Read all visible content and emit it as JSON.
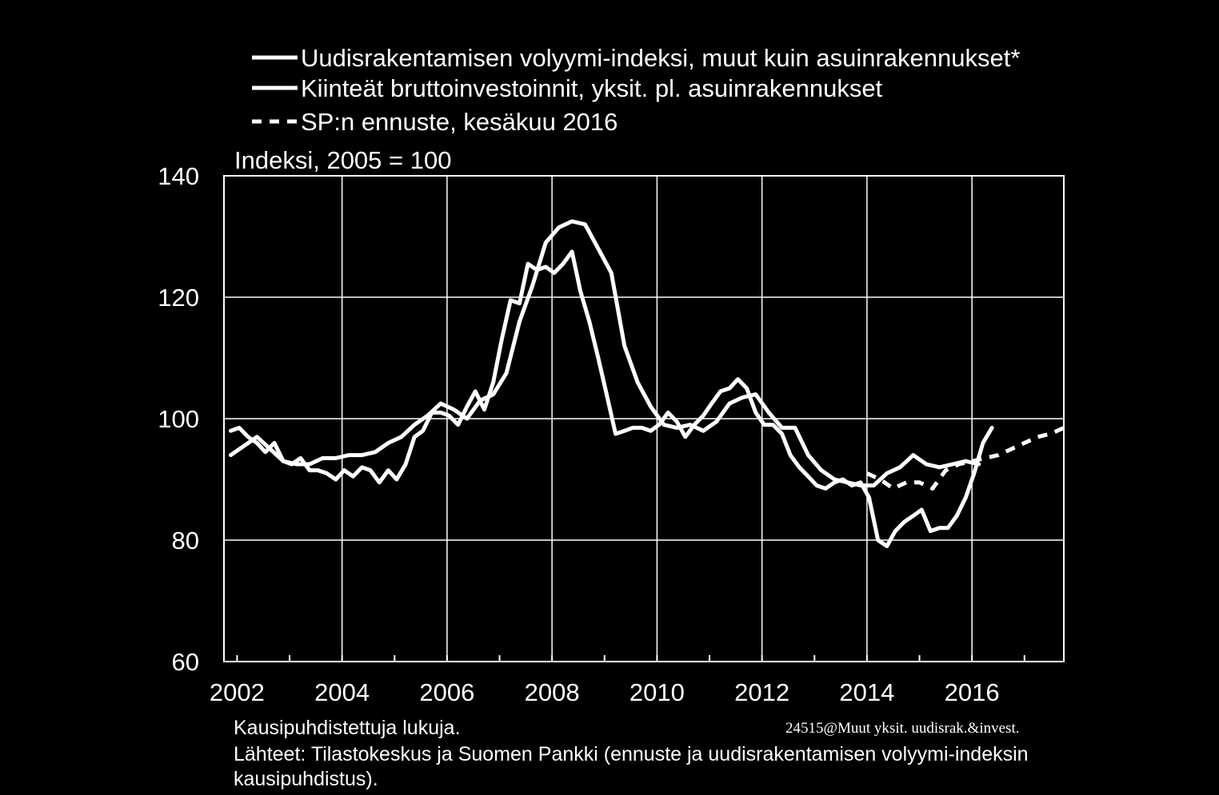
{
  "chart_data": {
    "type": "line",
    "unit_label": "Indeksi, 2005 = 100",
    "xlim": [
      2001.75,
      2017.75
    ],
    "ylim": [
      60,
      140
    ],
    "y_ticks": [
      "60",
      "80",
      "100",
      "120",
      "140"
    ],
    "x_ticks": [
      "2002",
      "2004",
      "2006",
      "2008",
      "2010",
      "2012",
      "2014",
      "2016"
    ],
    "grid": true,
    "legend_position": "top",
    "series": [
      {
        "name": "Uudisrakentamisen volyymi-indeksi, muut kuin asuinrakennukset*",
        "style": "solid",
        "color": "#ffffff",
        "x": [
          2001.88,
          2002.04,
          2002.21,
          2002.38,
          2002.54,
          2002.71,
          2002.88,
          2003.04,
          2003.21,
          2003.38,
          2003.54,
          2003.71,
          2003.88,
          2004.04,
          2004.21,
          2004.38,
          2004.54,
          2004.71,
          2004.88,
          2005.04,
          2005.21,
          2005.38,
          2005.54,
          2005.71,
          2005.88,
          2006.04,
          2006.21,
          2006.38,
          2006.54,
          2006.71,
          2006.88,
          2007.04,
          2007.21,
          2007.38,
          2007.54,
          2007.71,
          2007.88,
          2008.04,
          2008.21,
          2008.38,
          2008.54,
          2008.71,
          2008.88,
          2009.04,
          2009.21,
          2009.38,
          2009.54,
          2009.71,
          2009.88,
          2010.04,
          2010.21,
          2010.38,
          2010.54,
          2010.71,
          2010.88,
          2011.04,
          2011.21,
          2011.38,
          2011.54,
          2011.71,
          2011.88,
          2012.04,
          2012.21,
          2012.38,
          2012.54,
          2012.71,
          2012.88,
          2013.04,
          2013.21,
          2013.38,
          2013.54,
          2013.71,
          2013.88,
          2014.04,
          2014.21,
          2014.38,
          2014.54,
          2014.71,
          2014.88,
          2015.04,
          2015.21,
          2015.38,
          2015.54,
          2015.71,
          2015.88,
          2016.04,
          2016.21,
          2016.38
        ],
        "values": [
          98.0,
          98.5,
          97.0,
          96.0,
          94.5,
          96.0,
          93.0,
          92.5,
          93.5,
          91.5,
          91.5,
          91.0,
          90.0,
          91.5,
          90.5,
          92.0,
          91.5,
          89.5,
          91.5,
          90.0,
          92.5,
          97.0,
          98.0,
          101.0,
          101.0,
          100.5,
          99.0,
          102.0,
          104.5,
          101.5,
          106.0,
          113.0,
          119.5,
          119.0,
          125.5,
          124.5,
          125.0,
          124.0,
          125.5,
          127.5,
          121.0,
          116.0,
          110.0,
          104.0,
          97.5,
          98.0,
          98.5,
          98.5,
          98.0,
          99.0,
          101.0,
          99.5,
          97.0,
          99.0,
          100.5,
          102.5,
          104.5,
          105.0,
          106.5,
          105.0,
          101.0,
          99.0,
          99.0,
          97.5,
          94.0,
          92.0,
          90.5,
          89.0,
          88.5,
          89.5,
          90.0,
          89.0,
          89.5,
          87.0,
          80.0,
          79.0,
          81.5,
          83.0,
          84.0,
          85.0,
          81.5,
          82.0,
          82.0,
          84.0,
          87.0,
          91.0,
          96.0,
          98.5
        ]
      },
      {
        "name": "Kiinteät bruttoinvestoinnit, yksit. pl. asuinrakennukset",
        "style": "solid",
        "color": "#ffffff",
        "x": [
          2001.88,
          2002.13,
          2002.38,
          2002.63,
          2002.88,
          2003.13,
          2003.38,
          2003.63,
          2003.88,
          2004.13,
          2004.38,
          2004.63,
          2004.88,
          2005.13,
          2005.38,
          2005.63,
          2005.88,
          2006.13,
          2006.38,
          2006.63,
          2006.88,
          2007.13,
          2007.38,
          2007.63,
          2007.88,
          2008.13,
          2008.38,
          2008.63,
          2008.88,
          2009.13,
          2009.38,
          2009.63,
          2009.88,
          2010.13,
          2010.38,
          2010.63,
          2010.88,
          2011.13,
          2011.38,
          2011.63,
          2011.88,
          2012.13,
          2012.38,
          2012.63,
          2012.88,
          2013.13,
          2013.38,
          2013.63,
          2013.88,
          2014.13,
          2014.38,
          2014.63,
          2014.88,
          2015.13,
          2015.38,
          2015.63,
          2015.88,
          2016.13
        ],
        "values": [
          94.0,
          95.5,
          97.0,
          95.0,
          93.0,
          92.5,
          92.5,
          93.5,
          93.5,
          94.0,
          94.0,
          94.5,
          96.0,
          97.0,
          99.0,
          100.5,
          102.5,
          101.5,
          100.0,
          103.0,
          104.0,
          107.5,
          116.0,
          122.0,
          129.0,
          131.5,
          132.5,
          132.0,
          128.0,
          124.0,
          112.0,
          106.0,
          102.0,
          99.0,
          98.5,
          99.0,
          98.0,
          99.5,
          102.5,
          103.5,
          104.0,
          101.0,
          98.5,
          98.5,
          94.0,
          91.5,
          90.0,
          89.5,
          89.0,
          89.0,
          91.0,
          92.0,
          94.0,
          92.5,
          92.0,
          92.5,
          93.0,
          92.5
        ]
      },
      {
        "name": "SP:n ennuste, kesäkuu 2016",
        "style": "dashed",
        "color": "#ffffff",
        "x": [
          2014.0,
          2014.25,
          2014.5,
          2014.75,
          2015.0,
          2015.25,
          2015.5,
          2015.75,
          2016.0,
          2016.25,
          2016.5,
          2016.75,
          2017.0,
          2017.25,
          2017.5,
          2017.75
        ],
        "values": [
          91.0,
          90.0,
          88.5,
          89.5,
          89.5,
          88.5,
          91.5,
          92.5,
          93.0,
          93.5,
          94.0,
          95.0,
          96.0,
          97.0,
          97.5,
          98.5
        ]
      }
    ]
  },
  "notes": {
    "line1": "Kausipuhdistettuja lukuja.",
    "line2": "Lähteet: Tilastokeskus ja Suomen Pankki (ennuste ja uudisrakentamisen volyymi-indeksin",
    "line3": "kausipuhdistus).",
    "code": "24515@Muut yksit. uudisrak.&invest."
  }
}
